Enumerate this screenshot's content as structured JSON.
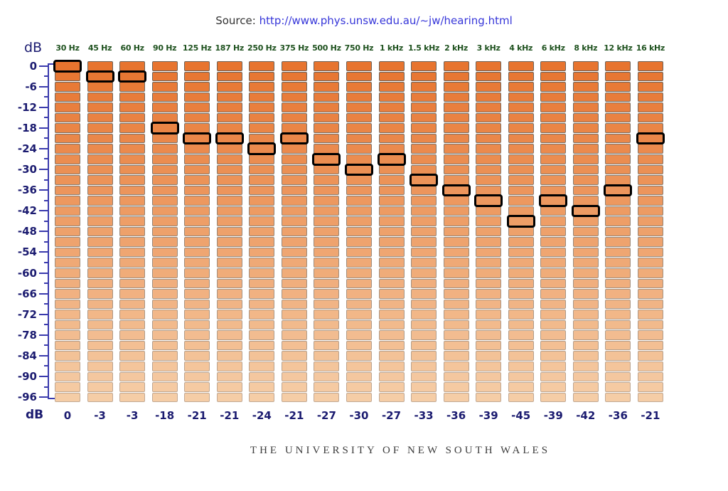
{
  "source": {
    "label": "Source:",
    "url": "http://www.phys.unsw.edu.au/~jw/hearing.html"
  },
  "axis": {
    "unit_label_top": "dB",
    "unit_label_bottom": "dB",
    "max_db": 0,
    "min_db": -96,
    "label_step_db": 6,
    "segment_step_db": 3,
    "tick_labels": [
      "0",
      "-6",
      "-12",
      "-18",
      "-24",
      "-30",
      "-36",
      "-42",
      "-48",
      "-54",
      "-60",
      "-66",
      "-72",
      "-78",
      "-84",
      "-90",
      "-96"
    ]
  },
  "equalizer": {
    "columns": [
      {
        "freq": "30 Hz",
        "value": 0
      },
      {
        "freq": "45 Hz",
        "value": -3
      },
      {
        "freq": "60 Hz",
        "value": -3
      },
      {
        "freq": "90 Hz",
        "value": -18
      },
      {
        "freq": "125 Hz",
        "value": -21
      },
      {
        "freq": "187 Hz",
        "value": -21
      },
      {
        "freq": "250 Hz",
        "value": -24
      },
      {
        "freq": "375 Hz",
        "value": -21
      },
      {
        "freq": "500 Hz",
        "value": -27
      },
      {
        "freq": "750 Hz",
        "value": -30
      },
      {
        "freq": "1 kHz",
        "value": -27
      },
      {
        "freq": "1.5 kHz",
        "value": -33
      },
      {
        "freq": "2 kHz",
        "value": -36
      },
      {
        "freq": "3 kHz",
        "value": -39
      },
      {
        "freq": "4 kHz",
        "value": -45
      },
      {
        "freq": "6 kHz",
        "value": -39
      },
      {
        "freq": "8 kHz",
        "value": -42
      },
      {
        "freq": "12 kHz",
        "value": -36
      },
      {
        "freq": "16 kHz",
        "value": -21
      }
    ]
  },
  "chart_data": {
    "type": "bar",
    "categories": [
      "30 Hz",
      "45 Hz",
      "60 Hz",
      "90 Hz",
      "125 Hz",
      "187 Hz",
      "250 Hz",
      "375 Hz",
      "500 Hz",
      "750 Hz",
      "1 kHz",
      "1.5 kHz",
      "2 kHz",
      "3 kHz",
      "4 kHz",
      "6 kHz",
      "8 kHz",
      "12 kHz",
      "16 kHz"
    ],
    "values": [
      0,
      -3,
      -3,
      -18,
      -21,
      -21,
      -24,
      -21,
      -27,
      -30,
      -27,
      -33,
      -36,
      -39,
      -45,
      -39,
      -42,
      -36,
      -21
    ],
    "ylabel": "dB",
    "ylim": [
      -96,
      0
    ]
  },
  "footer": {
    "text": "THE UNIVERSITY OF NEW SOUTH WALES"
  },
  "colors": {
    "segment_fill_top": "#e7742f",
    "segment_fill_bottom": "#f5cda6",
    "segment_border_top": "#6e6257",
    "segment_border_bottom": "#c2aa95",
    "selected_border": "#000000",
    "navy": "#1b1b70",
    "freq_green": "#1f521f",
    "url_blue": "#3636d9",
    "axis_blue": "#3a3aad",
    "footer_gray": "#3d3d3d",
    "source_gray": "#333333"
  }
}
